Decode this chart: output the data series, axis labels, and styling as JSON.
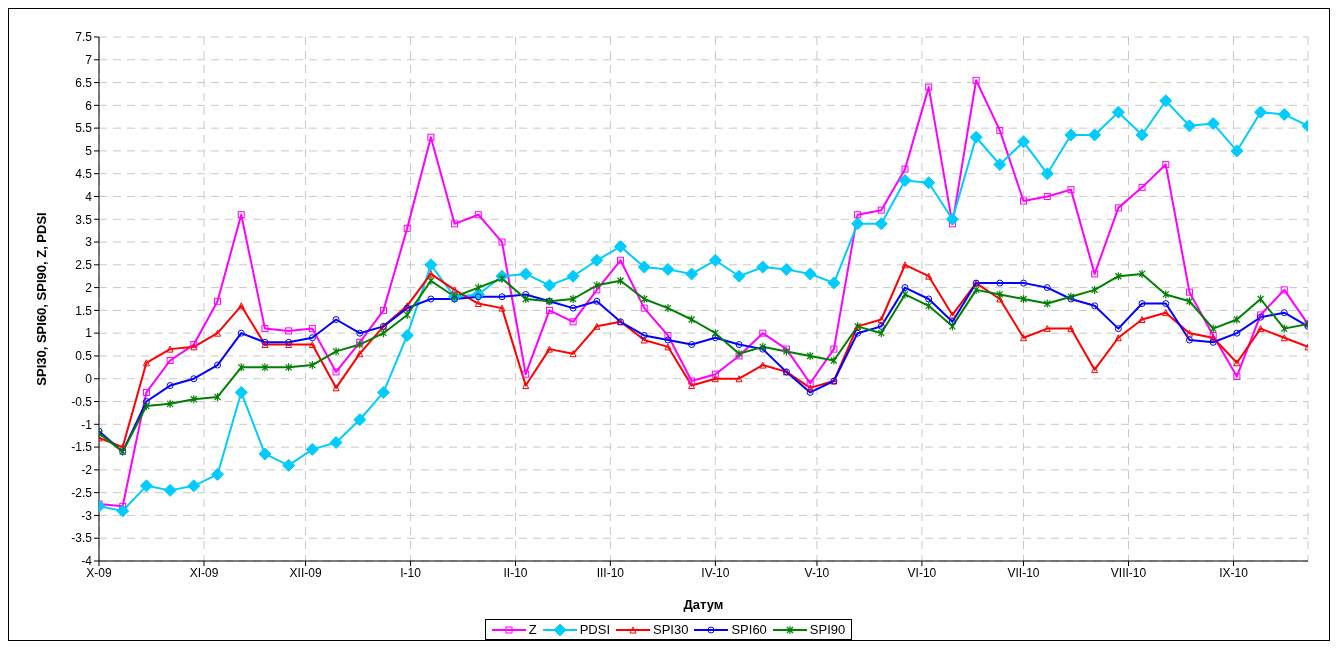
{
  "chart_data": {
    "type": "line",
    "xlabel": "Датум",
    "ylabel": "SPI30, SPI60, SPI90, Z, PDSI",
    "x": [
      "2009-10-01",
      "2009-10-08",
      "2009-10-15",
      "2009-10-22",
      "2009-10-29",
      "2009-11-05",
      "2009-11-12",
      "2009-11-19",
      "2009-11-26",
      "2009-12-03",
      "2009-12-10",
      "2009-12-17",
      "2009-12-24",
      "2009-12-31",
      "2010-01-07",
      "2010-01-14",
      "2010-01-21",
      "2010-01-28",
      "2010-02-04",
      "2010-02-11",
      "2010-02-18",
      "2010-02-25",
      "2010-03-04",
      "2010-03-11",
      "2010-03-18",
      "2010-03-25",
      "2010-04-01",
      "2010-04-08",
      "2010-04-15",
      "2010-04-22",
      "2010-04-29",
      "2010-05-06",
      "2010-05-13",
      "2010-05-20",
      "2010-05-27",
      "2010-06-03",
      "2010-06-10",
      "2010-06-17",
      "2010-06-24",
      "2010-07-01",
      "2010-07-08",
      "2010-07-15",
      "2010-07-22",
      "2010-07-29",
      "2010-08-05",
      "2010-08-12",
      "2010-08-19",
      "2010-08-26",
      "2010-09-02",
      "2010-09-09",
      "2010-09-16",
      "2010-09-23"
    ],
    "series": [
      {
        "name": "Z",
        "color": "#ff00ff",
        "marker": "square",
        "values": [
          -2.75,
          -2.8,
          -0.3,
          0.4,
          0.75,
          1.7,
          3.6,
          1.1,
          1.05,
          1.1,
          0.15,
          0.8,
          1.5,
          3.3,
          5.3,
          3.4,
          3.6,
          3.0,
          0.1,
          1.5,
          1.25,
          1.95,
          2.6,
          1.55,
          0.95,
          -0.05,
          0.1,
          0.5,
          1.0,
          0.65,
          -0.1,
          0.65,
          3.6,
          3.7,
          4.6,
          6.4,
          3.4,
          6.55,
          5.45,
          3.9,
          4.0,
          4.15,
          2.3,
          3.75,
          4.2,
          4.7,
          1.9,
          0.95,
          0.05,
          1.4,
          1.95,
          1.2
        ]
      },
      {
        "name": "PDSI",
        "color": "#00ccff",
        "marker": "diamond",
        "values": [
          -2.8,
          -2.9,
          -2.35,
          -2.45,
          -2.35,
          -2.1,
          -0.3,
          -1.65,
          -1.9,
          -1.55,
          -1.4,
          -0.9,
          -0.3,
          0.95,
          2.5,
          1.8,
          1.85,
          2.25,
          2.3,
          2.05,
          2.25,
          2.6,
          2.9,
          2.45,
          2.4,
          2.3,
          2.6,
          2.25,
          2.45,
          2.4,
          2.3,
          2.1,
          3.4,
          3.4,
          4.35,
          4.3,
          3.5,
          5.3,
          4.7,
          5.2,
          4.5,
          5.35,
          5.35,
          5.85,
          5.35,
          6.1,
          5.55,
          5.6,
          5.0,
          5.85,
          5.8,
          5.55
        ]
      },
      {
        "name": "SPI30",
        "color": "#ff0000",
        "marker": "triangle",
        "values": [
          -1.3,
          -1.5,
          0.35,
          0.65,
          0.7,
          1.0,
          1.6,
          0.75,
          0.75,
          0.75,
          -0.2,
          0.55,
          1.15,
          1.6,
          2.3,
          1.95,
          1.65,
          1.55,
          -0.15,
          0.65,
          0.55,
          1.15,
          1.25,
          0.85,
          0.7,
          -0.15,
          0.0,
          0.0,
          0.3,
          0.15,
          -0.2,
          -0.05,
          1.15,
          1.3,
          2.5,
          2.25,
          1.4,
          2.1,
          1.75,
          0.9,
          1.1,
          1.1,
          0.2,
          0.9,
          1.3,
          1.45,
          1.0,
          0.9,
          0.35,
          1.1,
          0.9,
          0.7
        ]
      },
      {
        "name": "SPI60",
        "color": "#0000ff",
        "marker": "circle",
        "values": [
          -1.15,
          -1.6,
          -0.5,
          -0.15,
          0.0,
          0.3,
          1.0,
          0.8,
          0.8,
          0.9,
          1.3,
          1.0,
          1.15,
          1.55,
          1.75,
          1.75,
          1.8,
          1.8,
          1.85,
          1.7,
          1.55,
          1.7,
          1.25,
          0.95,
          0.85,
          0.75,
          0.9,
          0.75,
          0.65,
          0.15,
          -0.3,
          -0.05,
          1.0,
          1.15,
          2.0,
          1.75,
          1.25,
          2.1,
          2.1,
          2.1,
          2.0,
          1.75,
          1.6,
          1.1,
          1.65,
          1.65,
          0.85,
          0.8,
          1.0,
          1.35,
          1.45,
          1.15
        ]
      },
      {
        "name": "SPI90",
        "color": "#008000",
        "marker": "cross",
        "values": [
          -1.2,
          -1.6,
          -0.6,
          -0.55,
          -0.45,
          -0.4,
          0.25,
          0.25,
          0.25,
          0.3,
          0.6,
          0.75,
          1.0,
          1.4,
          2.15,
          1.8,
          2.0,
          2.2,
          1.75,
          1.7,
          1.75,
          2.05,
          2.15,
          1.75,
          1.55,
          1.3,
          1.0,
          0.55,
          0.7,
          0.6,
          0.5,
          0.4,
          1.15,
          1.0,
          1.85,
          1.6,
          1.15,
          1.95,
          1.85,
          1.75,
          1.65,
          1.8,
          1.95,
          2.25,
          2.3,
          1.85,
          1.7,
          1.1,
          1.3,
          1.75,
          1.1,
          1.2
        ]
      }
    ],
    "xlim": [
      "2009-10-01",
      "2010-09-23"
    ],
    "xticks": [
      {
        "value": "2009-10-01",
        "label": "X-09"
      },
      {
        "value": "2009-11-01",
        "label": "XI-09"
      },
      {
        "value": "2009-12-01",
        "label": "XII-09"
      },
      {
        "value": "2010-01-01",
        "label": "I-10"
      },
      {
        "value": "2010-02-01",
        "label": "II-10"
      },
      {
        "value": "2010-03-01",
        "label": "III-10"
      },
      {
        "value": "2010-04-01",
        "label": "IV-10"
      },
      {
        "value": "2010-05-01",
        "label": "V-10"
      },
      {
        "value": "2010-06-01",
        "label": "VI-10"
      },
      {
        "value": "2010-07-01",
        "label": "VII-10"
      },
      {
        "value": "2010-08-01",
        "label": "VIII-10"
      },
      {
        "value": "2010-09-01",
        "label": "IX-10"
      }
    ],
    "ylim": [
      -4,
      7.5
    ],
    "yticks": [
      -4,
      -3.5,
      -3,
      -2.5,
      -2,
      -1.5,
      -1,
      -0.5,
      0,
      0.5,
      1,
      1.5,
      2,
      2.5,
      3,
      3.5,
      4,
      4.5,
      5,
      5.5,
      6,
      6.5,
      7,
      7.5
    ],
    "grid": true,
    "legend": "bottom",
    "line_style": "solid"
  }
}
